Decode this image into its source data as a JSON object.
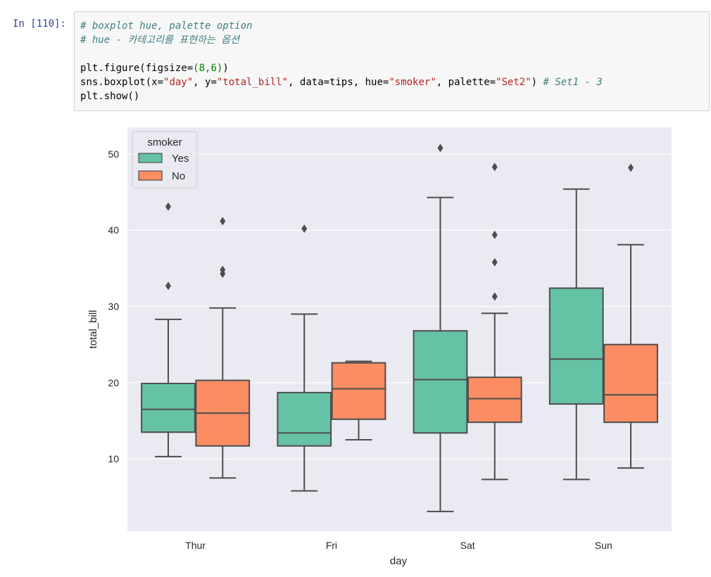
{
  "cell": {
    "prompt": "In [110]:",
    "comment1": "# boxplot hue, palette option",
    "comment2": "# hue - 카테고리를 표현하는 옵션",
    "line3_fn": "plt.figure(figsize=",
    "line3_args": "(8,6)",
    "line3_end": ")",
    "line4_a": "sns.boxplot(x=",
    "line4_x": "\"day\"",
    "line4_b": ", y=",
    "line4_y": "\"total_bill\"",
    "line4_c": ", data=tips, hue=",
    "line4_hue": "\"smoker\"",
    "line4_d": ", palette=",
    "line4_pal": "\"Set2\"",
    "line4_e": ") ",
    "line4_comment": "# Set1 - 3",
    "line5": "plt.show()"
  },
  "colors": {
    "yes": "#66c2a5",
    "no": "#fc8d62",
    "axes_bg": "#eaeaf2",
    "grid": "#ffffff",
    "line": "#4d4d4d"
  },
  "chart_data": {
    "type": "boxplot",
    "xlabel": "day",
    "ylabel": "total_bill",
    "categories": [
      "Thur",
      "Fri",
      "Sat",
      "Sun"
    ],
    "ylim": [
      0.5,
      53.5
    ],
    "yticks": [
      10,
      20,
      30,
      40,
      50
    ],
    "grid": true,
    "legend": {
      "title": "smoker",
      "placement": "top-left"
    },
    "series": [
      {
        "name": "Yes",
        "color": "#66c2a5",
        "boxes": [
          {
            "whislo": 10.3,
            "q1": 13.5,
            "med": 16.5,
            "q3": 19.9,
            "whishi": 28.3,
            "fliers": [
              32.7,
              43.1
            ]
          },
          {
            "whislo": 5.8,
            "q1": 11.7,
            "med": 13.4,
            "q3": 18.7,
            "whishi": 29.0,
            "fliers": [
              40.2
            ]
          },
          {
            "whislo": 3.1,
            "q1": 13.4,
            "med": 20.4,
            "q3": 26.8,
            "whishi": 44.3,
            "fliers": [
              50.8
            ]
          },
          {
            "whislo": 7.3,
            "q1": 17.2,
            "med": 23.1,
            "q3": 32.4,
            "whishi": 45.4,
            "fliers": []
          }
        ]
      },
      {
        "name": "No",
        "color": "#fc8d62",
        "boxes": [
          {
            "whislo": 7.5,
            "q1": 11.7,
            "med": 16.0,
            "q3": 20.3,
            "whishi": 29.8,
            "fliers": [
              34.3,
              34.8,
              41.2
            ]
          },
          {
            "whislo": 12.5,
            "q1": 15.2,
            "med": 19.2,
            "q3": 22.6,
            "whishi": 22.8,
            "fliers": []
          },
          {
            "whislo": 7.3,
            "q1": 14.8,
            "med": 17.9,
            "q3": 20.7,
            "whishi": 29.1,
            "fliers": [
              31.3,
              35.8,
              39.4,
              48.3
            ]
          },
          {
            "whislo": 8.8,
            "q1": 14.8,
            "med": 18.4,
            "q3": 25.0,
            "whishi": 38.1,
            "fliers": [
              48.2
            ]
          }
        ]
      }
    ]
  }
}
